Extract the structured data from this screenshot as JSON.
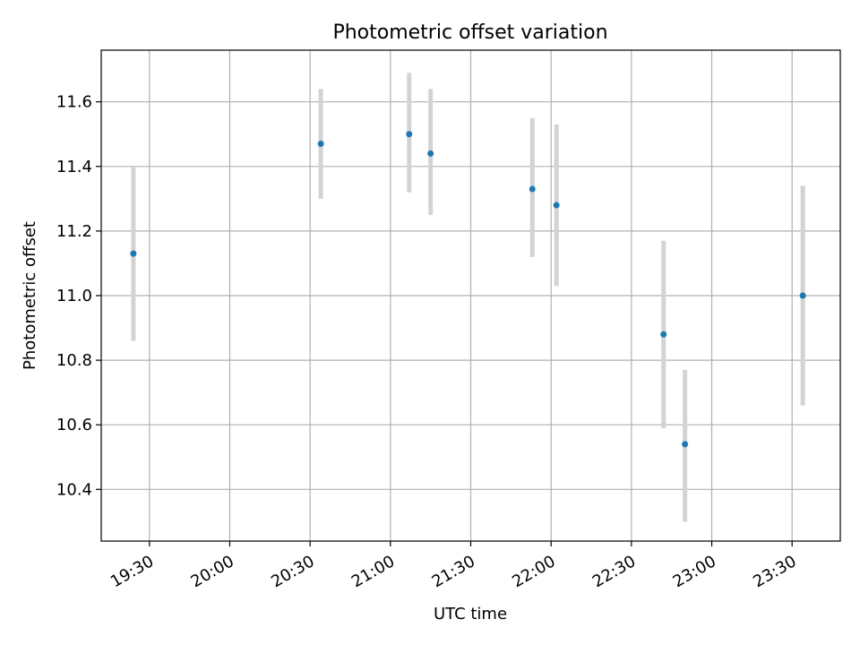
{
  "chart_data": {
    "type": "scatter",
    "title": "Photometric offset variation",
    "xlabel": "UTC time",
    "ylabel": "Photometric offset",
    "x_tick_labels": [
      "19:30",
      "20:00",
      "20:30",
      "21:00",
      "21:30",
      "22:00",
      "22:30",
      "23:00",
      "23:30"
    ],
    "x_ticks": [
      "19:30",
      "20:00",
      "20:30",
      "21:00",
      "21:30",
      "22:00",
      "22:30",
      "23:00",
      "23:30"
    ],
    "y_ticks": [
      10.4,
      10.6,
      10.8,
      11.0,
      11.2,
      11.4,
      11.6
    ],
    "y_tick_labels": [
      "10.4",
      "10.6",
      "10.8",
      "11.0",
      "11.2",
      "11.4",
      "11.6"
    ],
    "xlim": [
      "19:12",
      "23:48"
    ],
    "ylim": [
      10.24,
      11.76
    ],
    "grid": true,
    "points": [
      {
        "x": "19:24",
        "y": 11.13,
        "low": 10.86,
        "high": 11.4
      },
      {
        "x": "20:34",
        "y": 11.47,
        "low": 11.3,
        "high": 11.64
      },
      {
        "x": "21:07",
        "y": 11.5,
        "low": 11.32,
        "high": 11.69
      },
      {
        "x": "21:15",
        "y": 11.44,
        "low": 11.25,
        "high": 11.64
      },
      {
        "x": "21:53",
        "y": 11.33,
        "low": 11.12,
        "high": 11.55
      },
      {
        "x": "22:02",
        "y": 11.28,
        "low": 11.03,
        "high": 11.53
      },
      {
        "x": "22:42",
        "y": 10.88,
        "low": 10.59,
        "high": 11.17
      },
      {
        "x": "22:50",
        "y": 10.54,
        "low": 10.3,
        "high": 10.77
      },
      {
        "x": "23:34",
        "y": 11.0,
        "low": 10.66,
        "high": 11.34
      }
    ],
    "colors": {
      "point": "#1f77b4",
      "errorbar": "#d3d3d3",
      "grid": "#b0b0b0",
      "axes": "#000000"
    }
  }
}
